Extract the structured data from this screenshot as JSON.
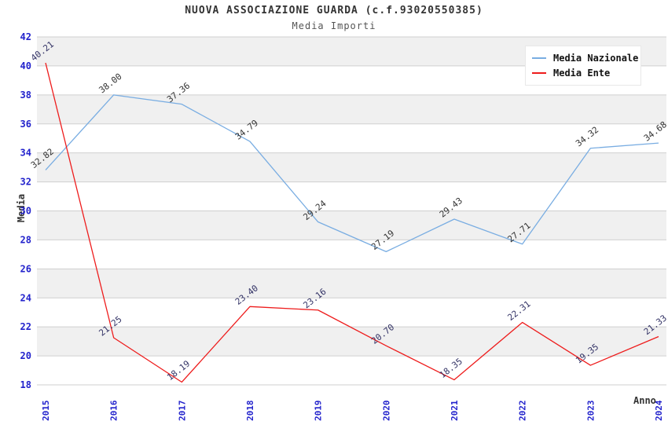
{
  "title": "NUOVA ASSOCIAZIONE GUARDA (c.f.93020550385)",
  "subtitle": "Media Importi",
  "axes": {
    "y_title": "Media",
    "x_title": "Anno",
    "tick_color": "#2222cc",
    "grid_color": "#cfcfcf",
    "band_color": "#f0f0f0"
  },
  "legend": {
    "items": [
      {
        "label": "Media Nazionale",
        "color": "#79ade2"
      },
      {
        "label": "Media Ente",
        "color": "#ee1c1c"
      }
    ]
  },
  "chart_data": {
    "type": "line",
    "title": "NUOVA ASSOCIAZIONE GUARDA (c.f.93020550385)",
    "subtitle": "Media Importi",
    "xlabel": "Anno",
    "ylabel": "Media",
    "categories": [
      "2015",
      "2016",
      "2017",
      "2018",
      "2019",
      "2020",
      "2021",
      "2022",
      "2023",
      "2024"
    ],
    "series": [
      {
        "name": "Media Nazionale",
        "color": "#79ade2",
        "label_color": "#333333",
        "values": [
          32.82,
          38.0,
          37.36,
          34.79,
          29.24,
          27.19,
          29.43,
          27.71,
          34.32,
          34.68
        ]
      },
      {
        "name": "Media Ente",
        "color": "#ee1c1c",
        "label_color": "#333366",
        "values": [
          40.21,
          21.25,
          18.19,
          23.4,
          23.16,
          20.7,
          18.35,
          22.31,
          19.35,
          21.33
        ]
      }
    ],
    "ylim": [
      18,
      42
    ],
    "ytick_step": 2,
    "grid": true,
    "banded_background": true,
    "legend_position": "top-right",
    "point_labels": "two-decimals, rotated -38deg above each point"
  }
}
